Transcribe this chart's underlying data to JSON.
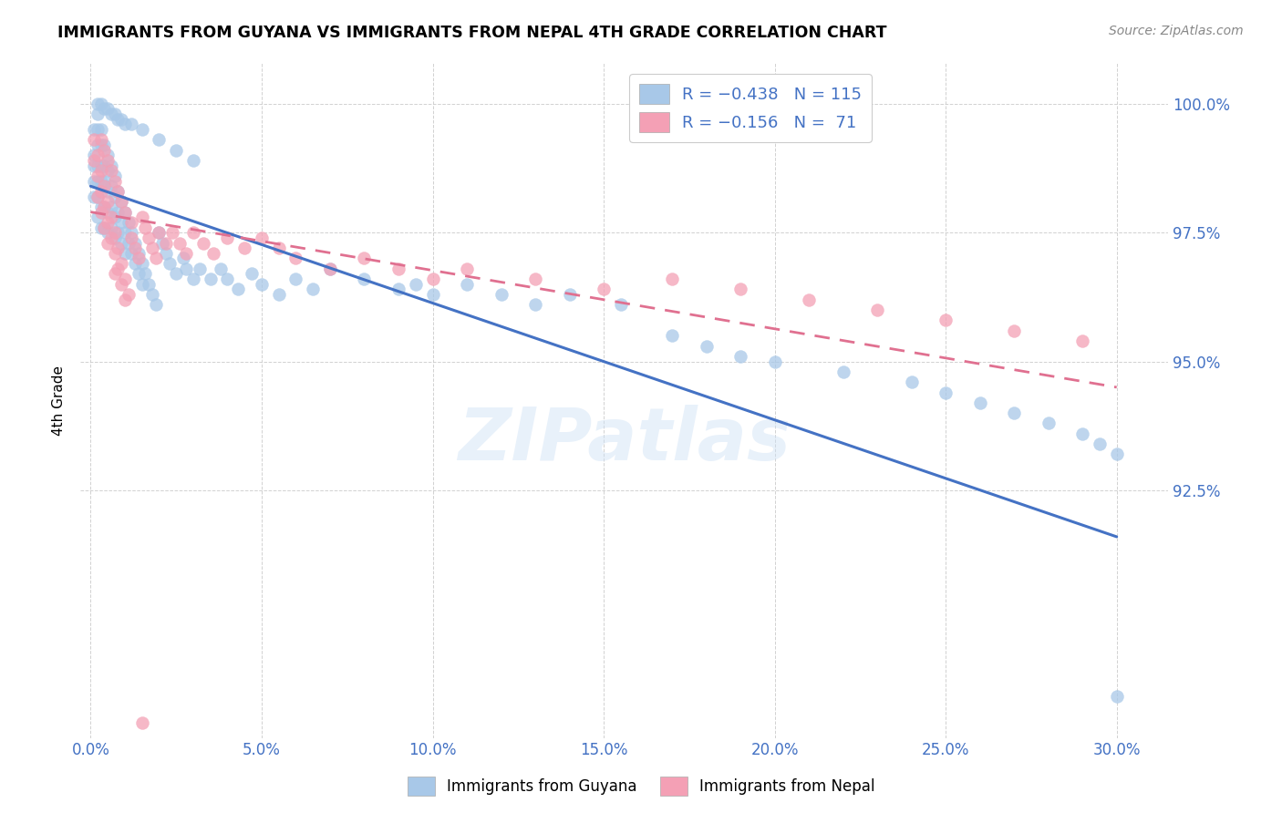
{
  "title": "IMMIGRANTS FROM GUYANA VS IMMIGRANTS FROM NEPAL 4TH GRADE CORRELATION CHART",
  "source": "Source: ZipAtlas.com",
  "xlabel_ticks": [
    "0.0%",
    "5.0%",
    "10.0%",
    "15.0%",
    "20.0%",
    "25.0%",
    "30.0%"
  ],
  "xlabel_vals": [
    0.0,
    0.05,
    0.1,
    0.15,
    0.2,
    0.25,
    0.3
  ],
  "ylabel": "4th Grade",
  "ylabel_ticks": [
    "92.5%",
    "95.0%",
    "97.5%",
    "100.0%"
  ],
  "ylabel_vals": [
    0.925,
    0.95,
    0.975,
    1.0
  ],
  "xlim": [
    -0.003,
    0.315
  ],
  "ylim": [
    0.877,
    1.008
  ],
  "color_guyana": "#a8c8e8",
  "color_nepal": "#f4a0b5",
  "color_guyana_line": "#4472c4",
  "color_nepal_line": "#e07090",
  "color_axis_labels": "#4472c4",
  "watermark": "ZIPatlas",
  "guyana_line_x": [
    0.0,
    0.3
  ],
  "guyana_line_y": [
    0.984,
    0.916
  ],
  "nepal_line_x": [
    0.0,
    0.3
  ],
  "nepal_line_y": [
    0.979,
    0.945
  ],
  "guyana_x": [
    0.001,
    0.001,
    0.001,
    0.001,
    0.001,
    0.002,
    0.002,
    0.002,
    0.002,
    0.002,
    0.002,
    0.002,
    0.003,
    0.003,
    0.003,
    0.003,
    0.003,
    0.003,
    0.004,
    0.004,
    0.004,
    0.004,
    0.004,
    0.005,
    0.005,
    0.005,
    0.005,
    0.005,
    0.006,
    0.006,
    0.006,
    0.006,
    0.007,
    0.007,
    0.007,
    0.007,
    0.008,
    0.008,
    0.008,
    0.009,
    0.009,
    0.009,
    0.01,
    0.01,
    0.01,
    0.011,
    0.011,
    0.012,
    0.012,
    0.013,
    0.013,
    0.014,
    0.014,
    0.015,
    0.015,
    0.016,
    0.017,
    0.018,
    0.019,
    0.02,
    0.021,
    0.022,
    0.023,
    0.025,
    0.027,
    0.028,
    0.03,
    0.032,
    0.035,
    0.038,
    0.04,
    0.043,
    0.047,
    0.05,
    0.055,
    0.06,
    0.065,
    0.07,
    0.08,
    0.09,
    0.095,
    0.1,
    0.11,
    0.12,
    0.13,
    0.14,
    0.155,
    0.17,
    0.18,
    0.19,
    0.2,
    0.22,
    0.24,
    0.25,
    0.26,
    0.27,
    0.28,
    0.29,
    0.295,
    0.3,
    0.3,
    0.002,
    0.003,
    0.004,
    0.005,
    0.006,
    0.007,
    0.008,
    0.009,
    0.01,
    0.012,
    0.015,
    0.02,
    0.025,
    0.03
  ],
  "guyana_y": [
    0.995,
    0.99,
    0.988,
    0.985,
    0.982,
    0.998,
    0.995,
    0.992,
    0.988,
    0.985,
    0.982,
    0.978,
    0.995,
    0.992,
    0.988,
    0.985,
    0.98,
    0.976,
    0.992,
    0.988,
    0.985,
    0.98,
    0.976,
    0.99,
    0.987,
    0.983,
    0.979,
    0.975,
    0.988,
    0.984,
    0.98,
    0.976,
    0.986,
    0.982,
    0.978,
    0.974,
    0.983,
    0.979,
    0.975,
    0.981,
    0.977,
    0.973,
    0.979,
    0.975,
    0.971,
    0.977,
    0.973,
    0.975,
    0.971,
    0.973,
    0.969,
    0.971,
    0.967,
    0.969,
    0.965,
    0.967,
    0.965,
    0.963,
    0.961,
    0.975,
    0.973,
    0.971,
    0.969,
    0.967,
    0.97,
    0.968,
    0.966,
    0.968,
    0.966,
    0.968,
    0.966,
    0.964,
    0.967,
    0.965,
    0.963,
    0.966,
    0.964,
    0.968,
    0.966,
    0.964,
    0.965,
    0.963,
    0.965,
    0.963,
    0.961,
    0.963,
    0.961,
    0.955,
    0.953,
    0.951,
    0.95,
    0.948,
    0.946,
    0.944,
    0.942,
    0.94,
    0.938,
    0.936,
    0.934,
    0.932,
    0.885,
    1.0,
    1.0,
    0.999,
    0.999,
    0.998,
    0.998,
    0.997,
    0.997,
    0.996,
    0.996,
    0.995,
    0.993,
    0.991,
    0.989
  ],
  "nepal_x": [
    0.001,
    0.001,
    0.002,
    0.002,
    0.002,
    0.003,
    0.003,
    0.003,
    0.004,
    0.004,
    0.004,
    0.005,
    0.005,
    0.005,
    0.006,
    0.006,
    0.007,
    0.007,
    0.007,
    0.008,
    0.008,
    0.009,
    0.009,
    0.01,
    0.01,
    0.011,
    0.012,
    0.013,
    0.014,
    0.015,
    0.016,
    0.017,
    0.018,
    0.019,
    0.02,
    0.022,
    0.024,
    0.026,
    0.028,
    0.03,
    0.033,
    0.036,
    0.04,
    0.045,
    0.05,
    0.055,
    0.06,
    0.07,
    0.08,
    0.09,
    0.1,
    0.11,
    0.13,
    0.15,
    0.17,
    0.19,
    0.21,
    0.23,
    0.25,
    0.27,
    0.29,
    0.003,
    0.004,
    0.005,
    0.006,
    0.007,
    0.008,
    0.009,
    0.01,
    0.012,
    0.015
  ],
  "nepal_y": [
    0.993,
    0.989,
    0.99,
    0.986,
    0.982,
    0.987,
    0.983,
    0.979,
    0.984,
    0.98,
    0.976,
    0.981,
    0.977,
    0.973,
    0.978,
    0.974,
    0.975,
    0.971,
    0.967,
    0.972,
    0.968,
    0.969,
    0.965,
    0.966,
    0.962,
    0.963,
    0.974,
    0.972,
    0.97,
    0.978,
    0.976,
    0.974,
    0.972,
    0.97,
    0.975,
    0.973,
    0.975,
    0.973,
    0.971,
    0.975,
    0.973,
    0.971,
    0.974,
    0.972,
    0.974,
    0.972,
    0.97,
    0.968,
    0.97,
    0.968,
    0.966,
    0.968,
    0.966,
    0.964,
    0.966,
    0.964,
    0.962,
    0.96,
    0.958,
    0.956,
    0.954,
    0.993,
    0.991,
    0.989,
    0.987,
    0.985,
    0.983,
    0.981,
    0.979,
    0.977,
    0.88
  ]
}
